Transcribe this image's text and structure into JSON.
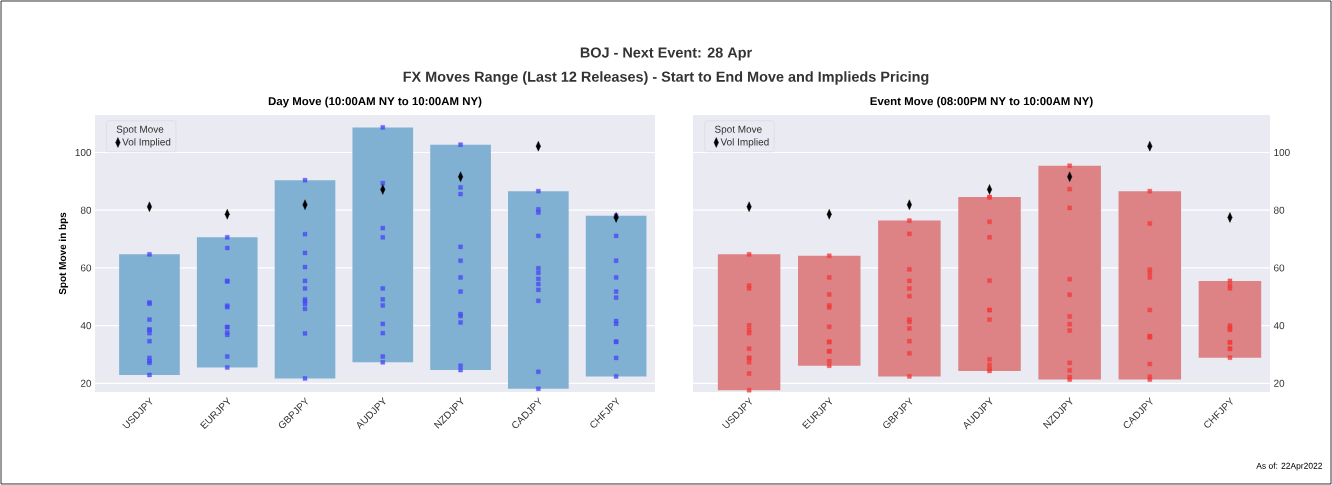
{
  "chart_data": [
    {
      "type": "bar",
      "title": "Day Move (10:00AM NY to 10:00AM NY)",
      "ylabel": "Spot Move in bps",
      "legend_title": "Spot Move",
      "legend": "top left",
      "grid": "y",
      "annotations": [
        "BOJ - Next Event: 28 Apr",
        "FX Moves Range (Last 12 Releases) - Start to End Move and Implieds Pricing"
      ],
      "categories": [
        "USDJPY",
        "EURJPY",
        "GBPJPY",
        "AUDJPY",
        "NZDJPY",
        "CADJPY",
        "CHFJPY"
      ],
      "ylim": [
        17,
        113
      ],
      "yticks": [
        20,
        40,
        60,
        80,
        100
      ],
      "series": [
        {
          "color": "#80b1d3",
          "base": [
            22.9,
            25.5,
            21.7,
            27.3,
            24.6,
            18.1,
            22.4
          ],
          "values": [
            41.8,
            45.1,
            68.7,
            81.4,
            78.1,
            68.5,
            55.7
          ]
        },
        {
          "type": "scatter",
          "marker": "square",
          "color": "#4a4af5",
          "x": [
            "USDJPY",
            "USDJPY",
            "USDJPY",
            "USDJPY",
            "USDJPY",
            "USDJPY",
            "USDJPY",
            "USDJPY",
            "USDJPY",
            "USDJPY",
            "USDJPY",
            "USDJPY",
            "EURJPY",
            "EURJPY",
            "EURJPY",
            "EURJPY",
            "EURJPY",
            "EURJPY",
            "EURJPY",
            "EURJPY",
            "EURJPY",
            "EURJPY",
            "EURJPY",
            "EURJPY",
            "GBPJPY",
            "GBPJPY",
            "GBPJPY",
            "GBPJPY",
            "GBPJPY",
            "GBPJPY",
            "GBPJPY",
            "GBPJPY",
            "GBPJPY",
            "GBPJPY",
            "GBPJPY",
            "GBPJPY",
            "AUDJPY",
            "AUDJPY",
            "AUDJPY",
            "AUDJPY",
            "AUDJPY",
            "AUDJPY",
            "AUDJPY",
            "AUDJPY",
            "AUDJPY",
            "AUDJPY",
            "AUDJPY",
            "NZDJPY",
            "NZDJPY",
            "NZDJPY",
            "NZDJPY",
            "NZDJPY",
            "NZDJPY",
            "NZDJPY",
            "NZDJPY",
            "NZDJPY",
            "NZDJPY",
            "NZDJPY",
            "NZDJPY",
            "CADJPY",
            "CADJPY",
            "CADJPY",
            "CADJPY",
            "CADJPY",
            "CADJPY",
            "CADJPY",
            "CADJPY",
            "CADJPY",
            "CADJPY",
            "CADJPY",
            "CADJPY",
            "CHFJPY",
            "CHFJPY",
            "CHFJPY",
            "CHFJPY",
            "CHFJPY",
            "CHFJPY",
            "CHFJPY",
            "CHFJPY",
            "CHFJPY",
            "CHFJPY",
            "CHFJPY",
            "CHFJPY"
          ],
          "values": [
            64.7,
            48.0,
            47.6,
            42.1,
            38.6,
            38.6,
            37.4,
            34.6,
            28.8,
            27.7,
            27.1,
            22.9,
            70.6,
            66.9,
            55.5,
            55.3,
            46.9,
            46.4,
            39.5,
            39.5,
            37.6,
            36.8,
            29.3,
            25.5,
            90.4,
            71.7,
            65.2,
            60.3,
            55.5,
            52.9,
            49.1,
            48.5,
            47.5,
            45.8,
            37.3,
            21.7,
            108.7,
            89.4,
            73.8,
            70.6,
            52.9,
            49.1,
            47.0,
            40.6,
            37.4,
            29.3,
            27.3,
            102.7,
            87.9,
            85.6,
            67.3,
            62.5,
            56.7,
            51.8,
            44.0,
            43.3,
            41.1,
            26.1,
            24.6,
            86.6,
            80.3,
            79.2,
            71.1,
            59.9,
            58.3,
            56.2,
            54.4,
            52.4,
            48.6,
            24.0,
            18.1,
            78.1,
            71.1,
            62.5,
            56.7,
            51.8,
            49.7,
            41.6,
            40.6,
            34.4,
            34.4,
            28.8,
            22.4
          ]
        },
        {
          "type": "scatter",
          "name": "Vol Implied",
          "marker": "diamond",
          "color": "#000000",
          "values": [
            81.2,
            78.6,
            81.9,
            87.2,
            91.6,
            102.2,
            77.5
          ]
        }
      ]
    },
    {
      "type": "bar",
      "title": "Event Move (08:00PM NY to 10:00AM NY)",
      "legend_title": "Spot Move",
      "legend": "top left",
      "grid": "y",
      "annotations": [
        "As of: 22Apr2022"
      ],
      "categories": [
        "USDJPY",
        "EURJPY",
        "GBPJPY",
        "AUDJPY",
        "NZDJPY",
        "CADJPY",
        "CHFJPY"
      ],
      "y2lim": [
        17,
        113
      ],
      "y2ticks": [
        20,
        40,
        60,
        80,
        100
      ],
      "series": [
        {
          "axis": "y2",
          "color": "#dd8285",
          "base": [
            17.6,
            26.1,
            22.4,
            24.3,
            21.3,
            21.3,
            28.9
          ],
          "values": [
            47.1,
            38.1,
            54.0,
            60.3,
            74.1,
            65.3,
            26.6
          ]
        },
        {
          "type": "scatter",
          "axis": "y2",
          "marker": "square",
          "color": "#f23c3c",
          "x": [
            "USDJPY",
            "USDJPY",
            "USDJPY",
            "USDJPY",
            "USDJPY",
            "USDJPY",
            "USDJPY",
            "USDJPY",
            "USDJPY",
            "USDJPY",
            "USDJPY",
            "USDJPY",
            "EURJPY",
            "EURJPY",
            "EURJPY",
            "EURJPY",
            "EURJPY",
            "EURJPY",
            "EURJPY",
            "EURJPY",
            "EURJPY",
            "EURJPY",
            "EURJPY",
            "EURJPY",
            "GBPJPY",
            "GBPJPY",
            "GBPJPY",
            "GBPJPY",
            "GBPJPY",
            "GBPJPY",
            "GBPJPY",
            "GBPJPY",
            "GBPJPY",
            "GBPJPY",
            "GBPJPY",
            "GBPJPY",
            "AUDJPY",
            "AUDJPY",
            "AUDJPY",
            "AUDJPY",
            "AUDJPY",
            "AUDJPY",
            "AUDJPY",
            "AUDJPY",
            "AUDJPY",
            "AUDJPY",
            "AUDJPY",
            "AUDJPY",
            "NZDJPY",
            "NZDJPY",
            "NZDJPY",
            "NZDJPY",
            "NZDJPY",
            "NZDJPY",
            "NZDJPY",
            "NZDJPY",
            "NZDJPY",
            "NZDJPY",
            "NZDJPY",
            "NZDJPY",
            "CADJPY",
            "CADJPY",
            "CADJPY",
            "CADJPY",
            "CADJPY",
            "CADJPY",
            "CADJPY",
            "CADJPY",
            "CADJPY",
            "CADJPY",
            "CADJPY",
            "CADJPY",
            "CHFJPY",
            "CHFJPY",
            "CHFJPY",
            "CHFJPY",
            "CHFJPY",
            "CHFJPY",
            "CHFJPY",
            "CHFJPY",
            "CHFJPY",
            "CHFJPY",
            "CHFJPY",
            "CHFJPY"
          ],
          "values": [
            64.7,
            53.9,
            52.9,
            40.1,
            38.5,
            37.4,
            32.0,
            28.8,
            28.8,
            27.3,
            23.4,
            17.6,
            64.2,
            56.7,
            50.8,
            47.0,
            46.3,
            39.6,
            34.4,
            34.3,
            31.1,
            31.1,
            27.7,
            26.1,
            76.4,
            71.8,
            59.5,
            55.5,
            52.9,
            50.2,
            42.1,
            41.3,
            39.0,
            34.6,
            30.4,
            22.4,
            84.6,
            84.4,
            76.0,
            70.6,
            55.6,
            45.4,
            45.4,
            42.1,
            28.3,
            26.4,
            25.0,
            24.3,
            95.4,
            87.3,
            80.8,
            56.1,
            50.7,
            43.2,
            40.5,
            38.3,
            27.1,
            24.5,
            22.2,
            21.3,
            86.6,
            75.4,
            59.4,
            58.2,
            56.7,
            45.4,
            36.3,
            36.3,
            35.9,
            26.7,
            22.3,
            21.3,
            55.5,
            53.9,
            52.9,
            40.0,
            39.4,
            38.9,
            38.5,
            34.2,
            34.2,
            32.0,
            32.0,
            28.9
          ]
        },
        {
          "type": "scatter",
          "axis": "y2",
          "name": "Vol Implied",
          "marker": "diamond",
          "color": "#000000",
          "values": [
            81.2,
            78.6,
            81.9,
            87.2,
            91.6,
            102.2,
            77.5
          ]
        }
      ]
    }
  ]
}
